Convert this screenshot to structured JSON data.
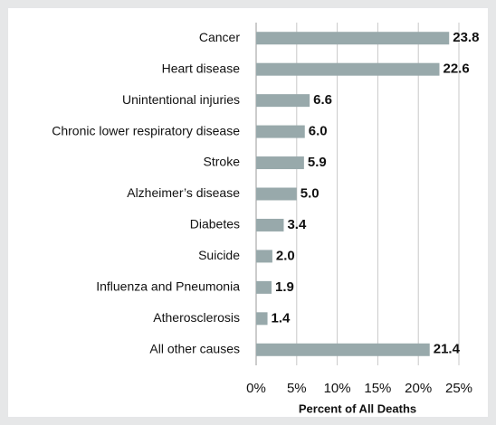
{
  "chart_data": {
    "type": "bar",
    "orientation": "horizontal",
    "categories": [
      "Cancer",
      "Heart disease",
      "Unintentional injuries",
      "Chronic lower respiratory disease",
      "Stroke",
      "Alzheimer’s disease",
      "Diabetes",
      "Suicide",
      "Influenza and Pneumonia",
      "Atherosclerosis",
      "All other causes"
    ],
    "values": [
      23.8,
      22.6,
      6.6,
      6.0,
      5.9,
      5.0,
      3.4,
      2.0,
      1.9,
      1.4,
      21.4
    ],
    "value_labels": [
      "23.8",
      "22.6",
      "6.6",
      "6.0",
      "5.9",
      "5.0",
      "3.4",
      "2.0",
      "1.9",
      "1.4",
      "21.4"
    ],
    "color": "#98a9ab",
    "xlabel": "Percent of All Deaths",
    "xlim": [
      0,
      25
    ],
    "xticks": [
      {
        "value": 0,
        "label": "0%"
      },
      {
        "value": 5,
        "label": "5%"
      },
      {
        "value": 10,
        "label": "10%"
      },
      {
        "value": 15,
        "label": "15%"
      },
      {
        "value": 20,
        "label": "20%"
      },
      {
        "value": 25,
        "label": "25%"
      }
    ],
    "grid": true
  }
}
